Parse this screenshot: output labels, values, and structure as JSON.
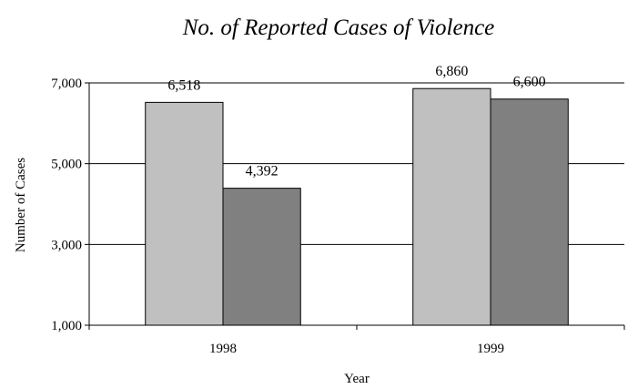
{
  "chart_data": {
    "type": "bar",
    "title": "No. of Reported Cases of Violence",
    "xlabel": "Year",
    "ylabel": "Number of Cases",
    "categories": [
      "1998",
      "1999"
    ],
    "series": [
      {
        "color": "#c0c0c0",
        "values": [
          6518,
          6860
        ],
        "labels": [
          "6,518",
          "6,860"
        ]
      },
      {
        "color": "#808080",
        "values": [
          4392,
          6600
        ],
        "labels": [
          "4,392",
          "6,600"
        ]
      }
    ],
    "ylim": [
      1000,
      7000
    ],
    "yticks": [
      1000,
      3000,
      5000,
      7000
    ],
    "ytick_labels": [
      "1,000",
      "3,000",
      "5,000",
      "7,000"
    ],
    "grid": true,
    "legend": "none"
  }
}
